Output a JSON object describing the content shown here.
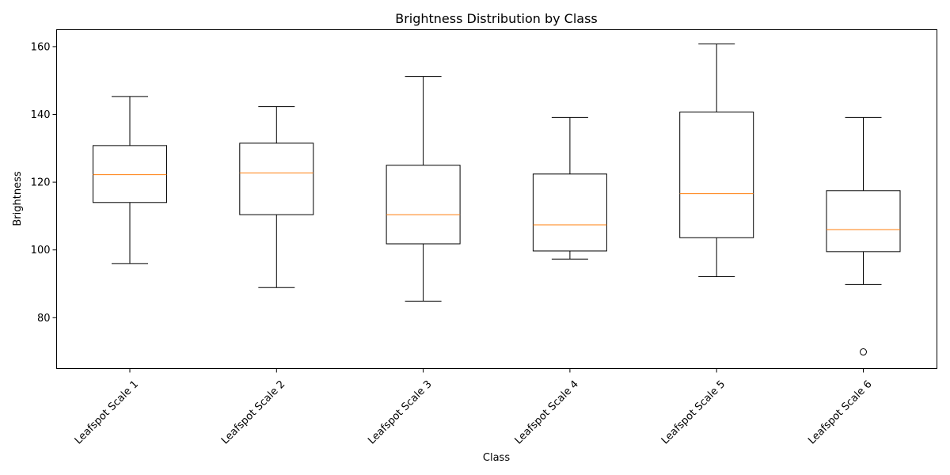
{
  "chart_data": {
    "type": "box",
    "title": "Brightness Distribution by Class",
    "xlabel": "Class",
    "ylabel": "Brightness",
    "ylim": [
      65,
      165
    ],
    "yticks": [
      80,
      100,
      120,
      140,
      160
    ],
    "grid": false,
    "colors": {
      "box": "#000000",
      "median": "#ff7f0e",
      "outlier": "#000000"
    },
    "categories": [
      "Leafspot Scale 1",
      "Leafspot Scale 2",
      "Leafspot Scale 3",
      "Leafspot Scale 4",
      "Leafspot Scale 5",
      "Leafspot Scale 6"
    ],
    "boxes": [
      {
        "whisker_low": 96.0,
        "q1": 114.0,
        "median": 122.2,
        "q3": 130.8,
        "whisker_high": 145.3,
        "outliers": []
      },
      {
        "whisker_low": 88.9,
        "q1": 110.4,
        "median": 122.7,
        "q3": 131.5,
        "whisker_high": 142.3,
        "outliers": []
      },
      {
        "whisker_low": 84.9,
        "q1": 101.8,
        "median": 110.4,
        "q3": 125.0,
        "whisker_high": 151.2,
        "outliers": []
      },
      {
        "whisker_low": 97.3,
        "q1": 99.7,
        "median": 107.4,
        "q3": 122.4,
        "whisker_high": 139.1,
        "outliers": []
      },
      {
        "whisker_low": 92.1,
        "q1": 103.6,
        "median": 116.6,
        "q3": 140.7,
        "whisker_high": 160.8,
        "outliers": []
      },
      {
        "whisker_low": 89.8,
        "q1": 99.5,
        "median": 106.0,
        "q3": 117.5,
        "whisker_high": 139.1,
        "outliers": [
          69.9
        ]
      }
    ]
  }
}
